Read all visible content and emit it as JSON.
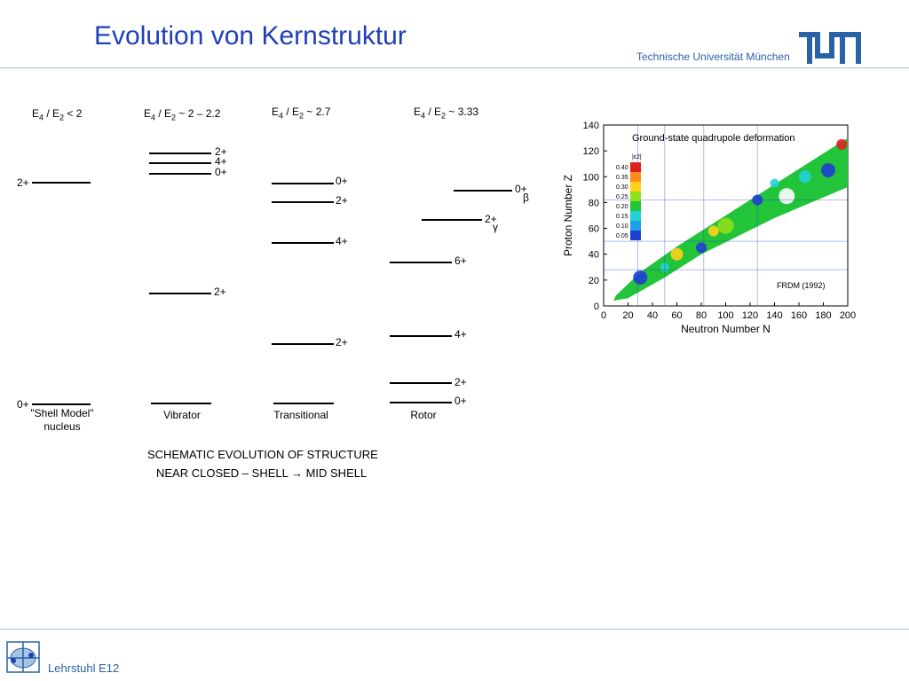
{
  "header": {
    "title": "Evolution von Kernstruktur",
    "university": "Technische Universität München",
    "logo_text": "TUM"
  },
  "scheme": {
    "columns": [
      {
        "ratio_label": "E4 / E2 < 2",
        "caption_line1": "\"Shell Model\"",
        "caption_line2": "nucleus",
        "levels": [
          {
            "label": "2+"
          },
          {
            "label": "0+"
          }
        ]
      },
      {
        "ratio_label": "E4 / E2 ~ 2 – 2.2",
        "caption_line1": "Vibrator",
        "levels": [
          {
            "label": "2+"
          },
          {
            "label": "4+"
          },
          {
            "label": "0+"
          },
          {
            "label": "2+"
          }
        ]
      },
      {
        "ratio_label": "E4 / E2 ~ 2.7",
        "caption_line1": "Transitional",
        "levels": [
          {
            "label": "0+"
          },
          {
            "label": "2+"
          },
          {
            "label": "4+"
          },
          {
            "label": "2+"
          }
        ]
      },
      {
        "ratio_label": "E4 / E2 ~ 3.33",
        "caption_line1": "Rotor",
        "levels": [
          {
            "label": "0+",
            "sub": "β"
          },
          {
            "label": "2+",
            "sub": "γ"
          },
          {
            "label": "6+"
          },
          {
            "label": "4+"
          },
          {
            "label": "2+"
          },
          {
            "label": "0+"
          }
        ]
      }
    ],
    "title_line1": "SCHEMATIC EVOLUTION OF STRUCTURE",
    "title_line2": "NEAR CLOSED – SHELL → MID SHELL"
  },
  "chart_data": {
    "type": "heatmap",
    "title": "Ground-state quadrupole deformation",
    "xlabel": "Neutron Number N",
    "ylabel": "Proton Number Z",
    "xlim": [
      0,
      200
    ],
    "ylim": [
      0,
      140
    ],
    "xticks": [
      0,
      20,
      40,
      60,
      80,
      100,
      120,
      140,
      160,
      180,
      200
    ],
    "yticks": [
      0,
      20,
      40,
      60,
      80,
      100,
      120,
      140
    ],
    "legend_title": "|ε2|",
    "legend": [
      {
        "value": "0.40",
        "color": "#e02020"
      },
      {
        "value": "0.35",
        "color": "#ff8c1a"
      },
      {
        "value": "0.30",
        "color": "#ffd21a"
      },
      {
        "value": "0.25",
        "color": "#8fe01a"
      },
      {
        "value": "0.20",
        "color": "#21c43a"
      },
      {
        "value": "0.15",
        "color": "#22d2d8"
      },
      {
        "value": "0.10",
        "color": "#1ea0e6"
      },
      {
        "value": "0.05",
        "color": "#1f3fd4"
      }
    ],
    "annotation": "FRDM (1992)"
  },
  "footer": {
    "label": "Lehrstuhl E12"
  }
}
